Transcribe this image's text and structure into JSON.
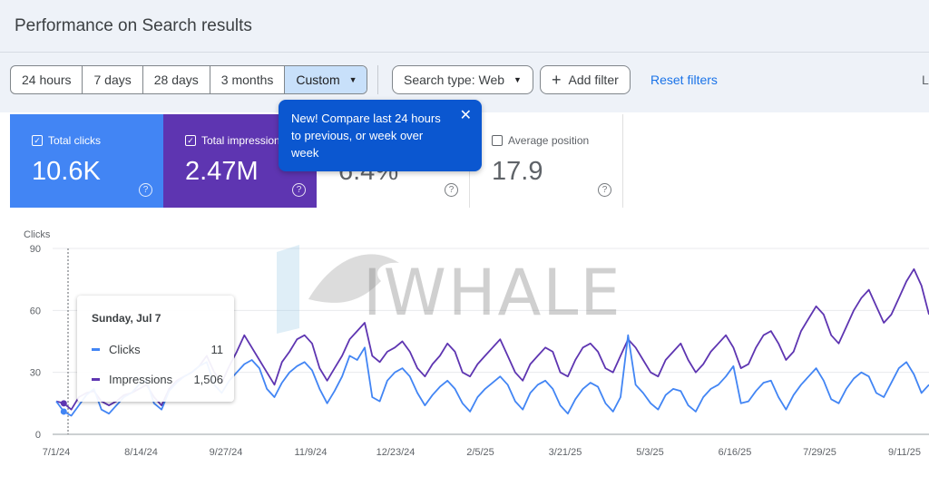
{
  "page": {
    "title": "Performance on Search results"
  },
  "date_range": {
    "options": [
      "24 hours",
      "7 days",
      "28 days",
      "3 months",
      "Custom"
    ],
    "selected": "Custom"
  },
  "filters": {
    "search_type": "Search type: Web",
    "add_filter": "Add filter",
    "reset": "Reset filters",
    "cut_text": "L"
  },
  "metrics": {
    "clicks": {
      "label": "Total clicks",
      "value": "10.6K",
      "checked": true,
      "color": "#4285f4"
    },
    "impressions": {
      "label": "Total impressions",
      "value": "2.47M",
      "checked": true,
      "color": "#5e35b1"
    },
    "ctr": {
      "value": "6.4%",
      "checked": false
    },
    "position": {
      "label": "Average position",
      "value": "17.9",
      "checked": false
    }
  },
  "tooltip": {
    "text": "New! Compare last 24 hours to previous, or week over week",
    "close_icon": "close-icon"
  },
  "watermark": {
    "text": "IWHALE"
  },
  "hover_card": {
    "date": "Sunday, Jul 7",
    "rows": [
      {
        "label": "Clicks",
        "value": "11",
        "color": "#4285f4"
      },
      {
        "label": "Impressions",
        "value": "1,506",
        "color": "#5e35b1"
      }
    ]
  },
  "chart_data": {
    "type": "line",
    "ylabel": "Clicks",
    "yticks": [
      0,
      30,
      60,
      90
    ],
    "ylim": [
      0,
      90
    ],
    "xtick_labels": [
      "7/1/24",
      "8/14/24",
      "9/27/24",
      "11/9/24",
      "12/23/24",
      "2/5/25",
      "3/21/25",
      "5/3/25",
      "6/16/25",
      "7/29/25",
      "9/11/25"
    ],
    "grid": true,
    "series": [
      {
        "name": "Clicks",
        "color": "#4285f4",
        "values": [
          16,
          11,
          9,
          14,
          19,
          22,
          12,
          10,
          14,
          18,
          20,
          24,
          26,
          15,
          12,
          21,
          25,
          28,
          30,
          33,
          35,
          24,
          20,
          26,
          30,
          34,
          36,
          32,
          22,
          18,
          25,
          30,
          33,
          35,
          31,
          22,
          15,
          21,
          28,
          38,
          36,
          42,
          18,
          16,
          26,
          30,
          32,
          28,
          20,
          14,
          19,
          23,
          26,
          22,
          15,
          11,
          18,
          22,
          25,
          28,
          24,
          16,
          12,
          20,
          24,
          26,
          22,
          14,
          10,
          17,
          22,
          25,
          23,
          15,
          11,
          18,
          48,
          24,
          20,
          15,
          12,
          19,
          22,
          21,
          14,
          11,
          18,
          22,
          24,
          28,
          33,
          15,
          16,
          21,
          25,
          26,
          18,
          12,
          19,
          24,
          28,
          32,
          26,
          17,
          15,
          22,
          27,
          30,
          28,
          20,
          18,
          25,
          32,
          35,
          29,
          20,
          24
        ]
      },
      {
        "name": "Impressions",
        "color": "#5e35b1",
        "values": [
          16,
          15,
          12,
          18,
          20,
          21,
          16,
          14,
          16,
          19,
          20,
          22,
          24,
          18,
          14,
          22,
          26,
          28,
          30,
          33,
          38,
          30,
          25,
          33,
          40,
          48,
          42,
          36,
          30,
          24,
          35,
          40,
          46,
          48,
          44,
          32,
          26,
          32,
          38,
          46,
          50,
          54,
          38,
          35,
          40,
          42,
          45,
          40,
          32,
          28,
          34,
          38,
          44,
          40,
          30,
          28,
          34,
          38,
          42,
          46,
          38,
          30,
          26,
          34,
          38,
          42,
          40,
          30,
          28,
          36,
          42,
          44,
          40,
          32,
          30,
          38,
          46,
          42,
          36,
          30,
          28,
          36,
          40,
          44,
          36,
          30,
          34,
          40,
          44,
          48,
          42,
          32,
          34,
          42,
          48,
          50,
          44,
          36,
          40,
          50,
          56,
          62,
          58,
          48,
          44,
          52,
          60,
          66,
          70,
          62,
          54,
          58,
          66,
          74,
          80,
          72,
          58
        ]
      }
    ]
  }
}
